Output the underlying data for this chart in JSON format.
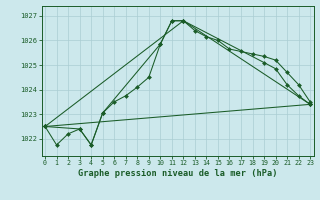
{
  "background_color": "#cce8ec",
  "grid_color": "#aacdd3",
  "line_color": "#1a5c28",
  "title": "Graphe pression niveau de la mer (hPa)",
  "xlim": [
    -0.3,
    23.3
  ],
  "ylim": [
    1021.3,
    1027.4
  ],
  "yticks": [
    1022,
    1023,
    1024,
    1025,
    1026,
    1027
  ],
  "xticks": [
    0,
    1,
    2,
    3,
    4,
    5,
    6,
    7,
    8,
    9,
    10,
    11,
    12,
    13,
    14,
    15,
    16,
    17,
    18,
    19,
    20,
    21,
    22,
    23
  ],
  "series": [
    {
      "x": [
        0,
        1,
        2,
        3,
        4,
        5,
        6,
        7,
        8,
        9,
        10,
        11,
        12,
        13,
        14,
        15,
        16,
        17,
        18,
        19,
        20,
        21,
        22,
        23
      ],
      "y": [
        1022.5,
        1021.75,
        1022.2,
        1022.4,
        1021.75,
        1023.05,
        1023.5,
        1023.75,
        1024.1,
        1024.5,
        1025.85,
        1026.8,
        1026.8,
        1026.4,
        1026.15,
        1026.0,
        1025.65,
        1025.55,
        1025.45,
        1025.35,
        1025.2,
        1024.7,
        1024.2,
        1023.5
      ]
    },
    {
      "x": [
        0,
        3,
        4,
        5,
        10,
        11,
        12,
        19,
        20,
        21,
        22,
        23
      ],
      "y": [
        1022.5,
        1022.4,
        1021.75,
        1023.05,
        1025.85,
        1026.8,
        1026.8,
        1025.1,
        1024.85,
        1024.2,
        1023.75,
        1023.4
      ]
    },
    {
      "x": [
        0,
        12,
        23
      ],
      "y": [
        1022.5,
        1026.8,
        1023.4
      ]
    },
    {
      "x": [
        0,
        23
      ],
      "y": [
        1022.5,
        1023.4
      ]
    }
  ]
}
